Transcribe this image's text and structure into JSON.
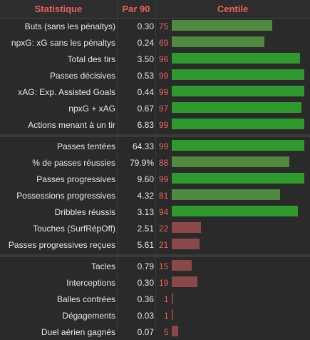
{
  "headers": {
    "stat": "Statistique",
    "per90": "Par 90",
    "pct": "Centile"
  },
  "colors": {
    "high": "#2e9a2e",
    "mid": "#4f8a3f",
    "low": "#8a4848",
    "accent": "#e8615a"
  },
  "groups": [
    [
      {
        "label": "Buts (sans les pénaltys)",
        "value": "0.30",
        "percentile": 75
      },
      {
        "label": "npxG: xG sans les pénaltys",
        "value": "0.24",
        "percentile": 69
      },
      {
        "label": "Total des tirs",
        "value": "3.50",
        "percentile": 96
      },
      {
        "label": "Passes décisives",
        "value": "0.53",
        "percentile": 99
      },
      {
        "label": "xAG: Exp. Assisted Goals",
        "value": "0.44",
        "percentile": 99
      },
      {
        "label": "npxG + xAG",
        "value": "0.67",
        "percentile": 97
      },
      {
        "label": "Actions menant à un tir",
        "value": "6.83",
        "percentile": 99
      }
    ],
    [
      {
        "label": "Passes tentées",
        "value": "64.33",
        "percentile": 99
      },
      {
        "label": "% de passes réussies",
        "value": "79.9%",
        "percentile": 88
      },
      {
        "label": "Passes progressives",
        "value": "9.60",
        "percentile": 99
      },
      {
        "label": "Possessions progressives",
        "value": "4.32",
        "percentile": 81
      },
      {
        "label": "Dribbles réussis",
        "value": "3.13",
        "percentile": 94
      },
      {
        "label": "Touches (SurfRépOff)",
        "value": "2.51",
        "percentile": 22
      },
      {
        "label": "Passes progressives reçues",
        "value": "5.61",
        "percentile": 21
      }
    ],
    [
      {
        "label": "Tacles",
        "value": "0.79",
        "percentile": 15
      },
      {
        "label": "Interceptions",
        "value": "0.30",
        "percentile": 19
      },
      {
        "label": "Balles contrées",
        "value": "0.36",
        "percentile": 1
      },
      {
        "label": "Dégagements",
        "value": "0.03",
        "percentile": 1
      },
      {
        "label": "Duel aérien gagnés",
        "value": "0.07",
        "percentile": 5
      }
    ]
  ]
}
